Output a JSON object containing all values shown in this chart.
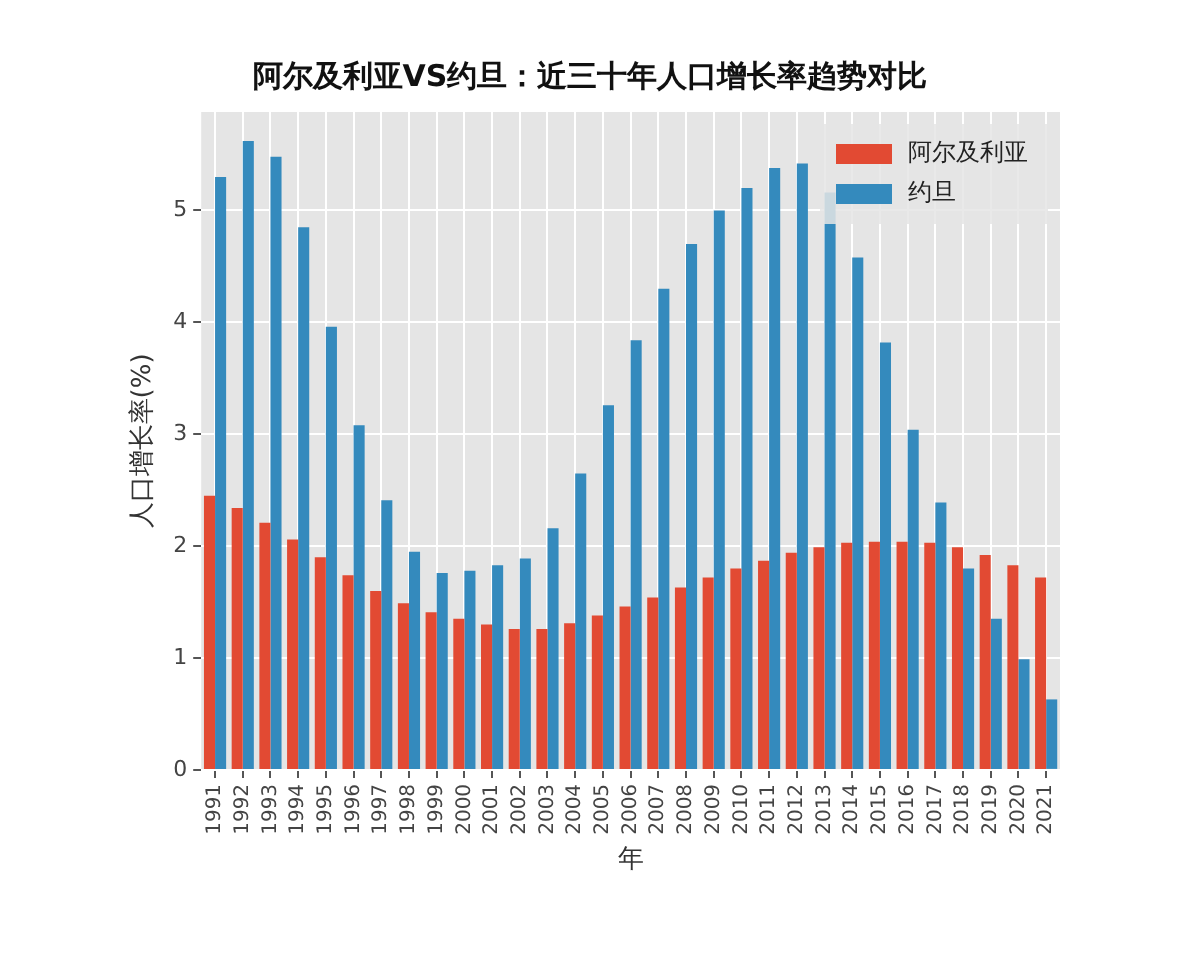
{
  "chart_data": {
    "type": "bar",
    "title": "阿尔及利亚VS约旦：近三十年人口增长率趋势对比",
    "xlabel": "年",
    "ylabel": "人口增长率(%)",
    "categories": [
      "1991",
      "1992",
      "1993",
      "1994",
      "1995",
      "1996",
      "1997",
      "1998",
      "1999",
      "2000",
      "2001",
      "2002",
      "2003",
      "2004",
      "2005",
      "2006",
      "2007",
      "2008",
      "2009",
      "2010",
      "2011",
      "2012",
      "2013",
      "2014",
      "2015",
      "2016",
      "2017",
      "2018",
      "2019",
      "2020",
      "2021"
    ],
    "series": [
      {
        "name": "阿尔及利亚",
        "color": "#e24a33",
        "values": [
          2.45,
          2.34,
          2.21,
          2.06,
          1.9,
          1.74,
          1.6,
          1.49,
          1.41,
          1.35,
          1.3,
          1.26,
          1.26,
          1.31,
          1.38,
          1.46,
          1.54,
          1.63,
          1.72,
          1.8,
          1.87,
          1.94,
          1.99,
          2.03,
          2.04,
          2.04,
          2.03,
          1.99,
          1.92,
          1.83,
          1.72
        ]
      },
      {
        "name": "约旦",
        "color": "#348abd",
        "values": [
          5.3,
          5.62,
          5.48,
          4.85,
          3.96,
          3.08,
          2.41,
          1.95,
          1.76,
          1.78,
          1.83,
          1.89,
          2.16,
          2.65,
          3.26,
          3.84,
          4.3,
          4.7,
          5.0,
          5.2,
          5.38,
          5.42,
          5.16,
          4.58,
          3.82,
          3.04,
          2.39,
          1.8,
          1.35,
          0.99,
          0.63
        ]
      }
    ],
    "ylim": [
      0,
      5.88
    ],
    "yticks": [
      0,
      1,
      2,
      3,
      4,
      5
    ],
    "grid": true,
    "legend": "top right"
  }
}
